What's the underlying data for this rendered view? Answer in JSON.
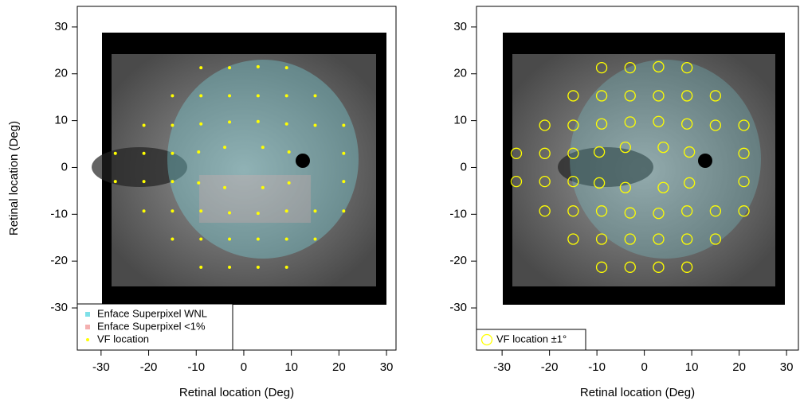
{
  "chart_data": [
    {
      "type": "scatter",
      "xlabel": "Retinal location (Deg)",
      "ylabel": "Retinal location (Deg)",
      "xlim": [
        -35,
        32
      ],
      "ylim": [
        -39,
        34.4
      ],
      "xticks": [
        -30,
        -20,
        -10,
        0,
        10,
        20,
        30
      ],
      "yticks": [
        -30,
        -20,
        -10,
        0,
        10,
        20,
        30
      ],
      "legend": "bottom-left",
      "series": [
        {
          "name": "Enface Superpixel WNL",
          "color": "#7fe0e8",
          "marker": "square",
          "x": [],
          "y": []
        },
        {
          "name": "Enface Superpixel <1%",
          "color": "#f4b0b0",
          "marker": "square",
          "x": [],
          "y": []
        },
        {
          "name": "VF location",
          "color": "#ffff00",
          "marker": "dot",
          "x": [
            -9,
            -3,
            3,
            9,
            -15,
            -9,
            -3,
            3,
            9,
            15,
            -21,
            -15,
            -9,
            -3,
            3,
            9,
            15,
            21,
            -27,
            -21,
            -15,
            -9.5,
            -4,
            4,
            9.5,
            21,
            -27,
            -21,
            -15,
            -9.5,
            -4,
            4,
            9.5,
            21,
            -21,
            -15,
            -9,
            -3,
            3,
            9,
            15,
            21,
            -15,
            -9,
            -3,
            3,
            9,
            15,
            -9,
            -3,
            3,
            9
          ],
          "y": [
            21.3,
            21.3,
            21.5,
            21.3,
            15.3,
            15.3,
            15.3,
            15.3,
            15.3,
            15.3,
            9,
            9,
            9.3,
            9.7,
            9.8,
            9.3,
            9,
            9,
            3,
            3,
            3,
            3.3,
            4.3,
            4.3,
            3.3,
            3,
            -3,
            -3,
            -3,
            -3.3,
            -4.3,
            -4.3,
            -3.3,
            -3,
            -9.3,
            -9.3,
            -9.3,
            -9.7,
            -9.8,
            -9.3,
            -9.3,
            -9.3,
            -15.3,
            -15.3,
            -15.3,
            -15.3,
            -15.3,
            -15.3,
            -21.3,
            -21.3,
            -21.3,
            -21.3
          ]
        }
      ]
    },
    {
      "type": "scatter",
      "xlabel": "Retinal location (Deg)",
      "xlim": [
        -35.4,
        32.5
      ],
      "ylim": [
        -39,
        34.4
      ],
      "xticks": [
        -30,
        -20,
        -10,
        0,
        10,
        20,
        30
      ],
      "yticks": [
        -30,
        -20,
        -10,
        0,
        10,
        20,
        30
      ],
      "legend": "bottom-left",
      "series": [
        {
          "name": "VF location ±1°",
          "color": "#ffff00",
          "marker": "circle",
          "x": [
            -9,
            -3,
            3,
            9,
            -15,
            -9,
            -3,
            3,
            9,
            15,
            -21,
            -15,
            -9,
            -3,
            3,
            9,
            15,
            21,
            -27,
            -21,
            -15,
            -9.5,
            -4,
            4,
            9.5,
            21,
            -27,
            -21,
            -15,
            -9.5,
            -4,
            4,
            9.5,
            21,
            -21,
            -15,
            -9,
            -3,
            3,
            9,
            15,
            21,
            -15,
            -9,
            -3,
            3,
            9,
            15,
            -9,
            -3,
            3,
            9
          ],
          "y": [
            21.3,
            21.3,
            21.5,
            21.3,
            15.3,
            15.3,
            15.3,
            15.3,
            15.3,
            15.3,
            9,
            9,
            9.3,
            9.7,
            9.8,
            9.3,
            9,
            9,
            3,
            3,
            3,
            3.3,
            4.3,
            4.3,
            3.3,
            3,
            -3,
            -3,
            -3,
            -3.3,
            -4.3,
            -4.3,
            -3.3,
            -3,
            -9.3,
            -9.3,
            -9.3,
            -9.7,
            -9.8,
            -9.3,
            -9.3,
            -9.3,
            -15.3,
            -15.3,
            -15.3,
            -15.3,
            -15.3,
            -15.3,
            -21.3,
            -21.3,
            -21.3,
            -21.3
          ]
        }
      ]
    }
  ]
}
